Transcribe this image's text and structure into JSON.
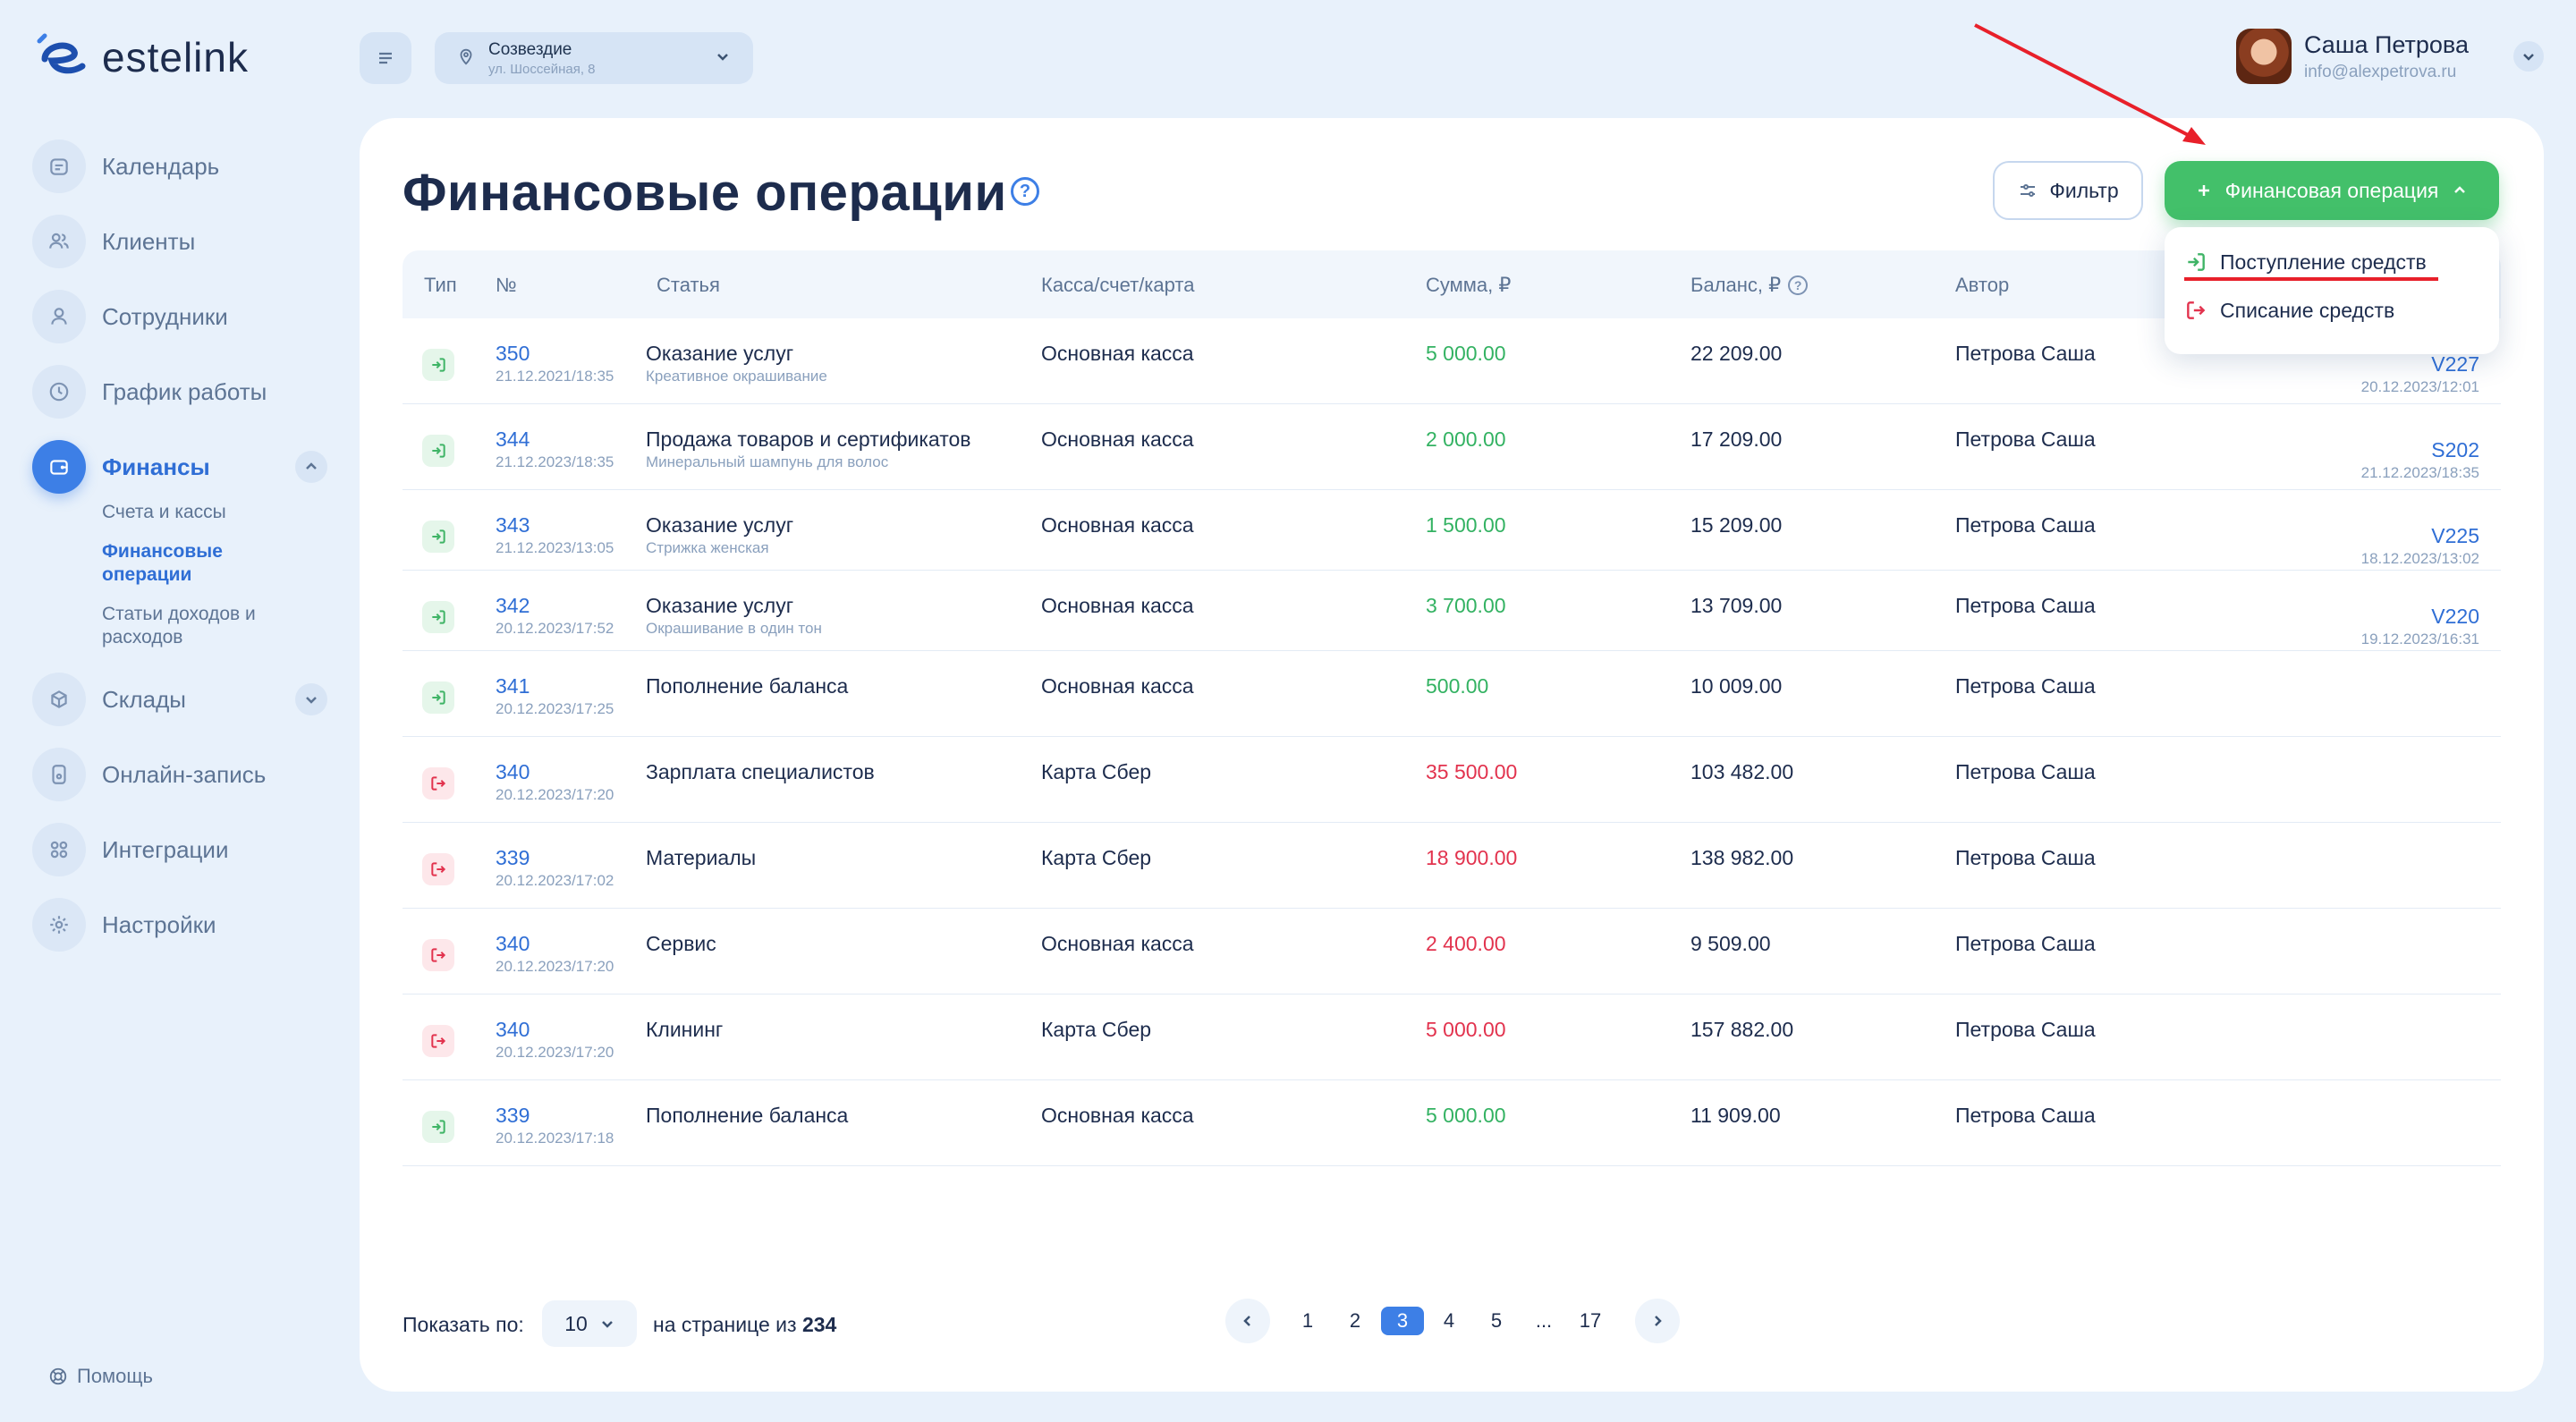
{
  "brand": {
    "name": "estelink"
  },
  "sidebar": {
    "items": [
      {
        "label": "Календарь",
        "icon": "calendar-icon"
      },
      {
        "label": "Клиенты",
        "icon": "clients-icon"
      },
      {
        "label": "Сотрудники",
        "icon": "user-icon"
      },
      {
        "label": "График работы",
        "icon": "clock-icon"
      },
      {
        "label": "Финансы",
        "icon": "wallet-icon"
      },
      {
        "label": "Склады",
        "icon": "warehouse-icon"
      },
      {
        "label": "Онлайн-запись",
        "icon": "phone-icon"
      },
      {
        "label": "Интеграции",
        "icon": "grid-icon"
      },
      {
        "label": "Настройки",
        "icon": "gear-icon"
      }
    ],
    "finance_sub": [
      {
        "label": "Счета и кассы"
      },
      {
        "label": "Финансовые операции"
      },
      {
        "label": "Статьи доходов и расходов"
      }
    ],
    "help": "Помощь"
  },
  "topbar": {
    "location_name": "Созвездие",
    "location_address": "ул. Шоссейная, 8",
    "user_name": "Саша Петрова",
    "user_email": "info@alexpetrova.ru"
  },
  "main": {
    "title": "Финансовые операции",
    "filter_label": "Фильтр",
    "add_label": "Финансовая операция",
    "dropdown": [
      {
        "label": "Поступление средств"
      },
      {
        "label": "Списание средств"
      }
    ],
    "columns": [
      "Тип",
      "№",
      "Статья",
      "Касса/счет/карта",
      "Сумма, ₽",
      "Баланс, ₽",
      "Автор"
    ],
    "rows": [
      {
        "type": "in",
        "num": "350",
        "date": "21.12.2021/18:35",
        "article": "Оказание услуг",
        "article_sub": "Креативное окрашивание",
        "account": "Основная касса",
        "sum": "5 000.00",
        "balance": "22 209.00",
        "author": "Петрова Саша",
        "ref": "V227",
        "ref_date": "20.12.2023/12:01"
      },
      {
        "type": "in",
        "num": "344",
        "date": "21.12.2023/18:35",
        "article": "Продажа товаров и сертификатов",
        "article_sub": "Минеральный шампунь для волос",
        "account": "Основная касса",
        "sum": "2 000.00",
        "balance": "17 209.00",
        "author": "Петрова Саша",
        "ref": "S202",
        "ref_date": "21.12.2023/18:35"
      },
      {
        "type": "in",
        "num": "343",
        "date": "21.12.2023/13:05",
        "article": "Оказание услуг",
        "article_sub": "Стрижка женская",
        "account": "Основная касса",
        "sum": "1 500.00",
        "balance": "15 209.00",
        "author": "Петрова Саша",
        "ref": "V225",
        "ref_date": "18.12.2023/13:02"
      },
      {
        "type": "in",
        "num": "342",
        "date": "20.12.2023/17:52",
        "article": "Оказание услуг",
        "article_sub": "Окрашивание в один тон",
        "account": "Основная касса",
        "sum": "3 700.00",
        "balance": "13 709.00",
        "author": "Петрова Саша",
        "ref": "V220",
        "ref_date": "19.12.2023/16:31"
      },
      {
        "type": "in",
        "num": "341",
        "date": "20.12.2023/17:25",
        "article": "Пополнение баланса",
        "article_sub": "",
        "account": "Основная касса",
        "sum": "500.00",
        "balance": "10 009.00",
        "author": "Петрова Саша",
        "ref": "",
        "ref_date": ""
      },
      {
        "type": "out",
        "num": "340",
        "date": "20.12.2023/17:20",
        "article": "Зарплата специалистов",
        "article_sub": "",
        "account": "Карта Сбер",
        "sum": "35 500.00",
        "balance": "103 482.00",
        "author": "Петрова Саша",
        "ref": "",
        "ref_date": ""
      },
      {
        "type": "out",
        "num": "339",
        "date": "20.12.2023/17:02",
        "article": "Материалы",
        "article_sub": "",
        "account": "Карта Сбер",
        "sum": "18 900.00",
        "balance": "138 982.00",
        "author": "Петрова Саша",
        "ref": "",
        "ref_date": ""
      },
      {
        "type": "out",
        "num": "340",
        "date": "20.12.2023/17:20",
        "article": "Сервис",
        "article_sub": "",
        "account": "Основная касса",
        "sum": "2 400.00",
        "balance": "9 509.00",
        "author": "Петрова Саша",
        "ref": "",
        "ref_date": ""
      },
      {
        "type": "out",
        "num": "340",
        "date": "20.12.2023/17:20",
        "article": "Клининг",
        "article_sub": "",
        "account": "Карта Сбер",
        "sum": "5 000.00",
        "balance": "157 882.00",
        "author": "Петрова Саша",
        "ref": "",
        "ref_date": ""
      },
      {
        "type": "in",
        "num": "339",
        "date": "20.12.2023/17:18",
        "article": "Пополнение баланса",
        "article_sub": "",
        "account": "Основная касса",
        "sum": "5 000.00",
        "balance": "11 909.00",
        "author": "Петрова Саша",
        "ref": "",
        "ref_date": ""
      }
    ]
  },
  "pagination": {
    "show_label": "Показать по:",
    "per_page": "10",
    "of_label": "на странице из",
    "total": "234",
    "pages": [
      "1",
      "2",
      "3",
      "4",
      "5",
      "...",
      "17"
    ],
    "current": "3"
  },
  "colors": {
    "accent": "#3d7fe6",
    "income": "#33b262",
    "expense": "#e2334e",
    "cta": "#43c06a",
    "annotation": "#e8202a"
  }
}
